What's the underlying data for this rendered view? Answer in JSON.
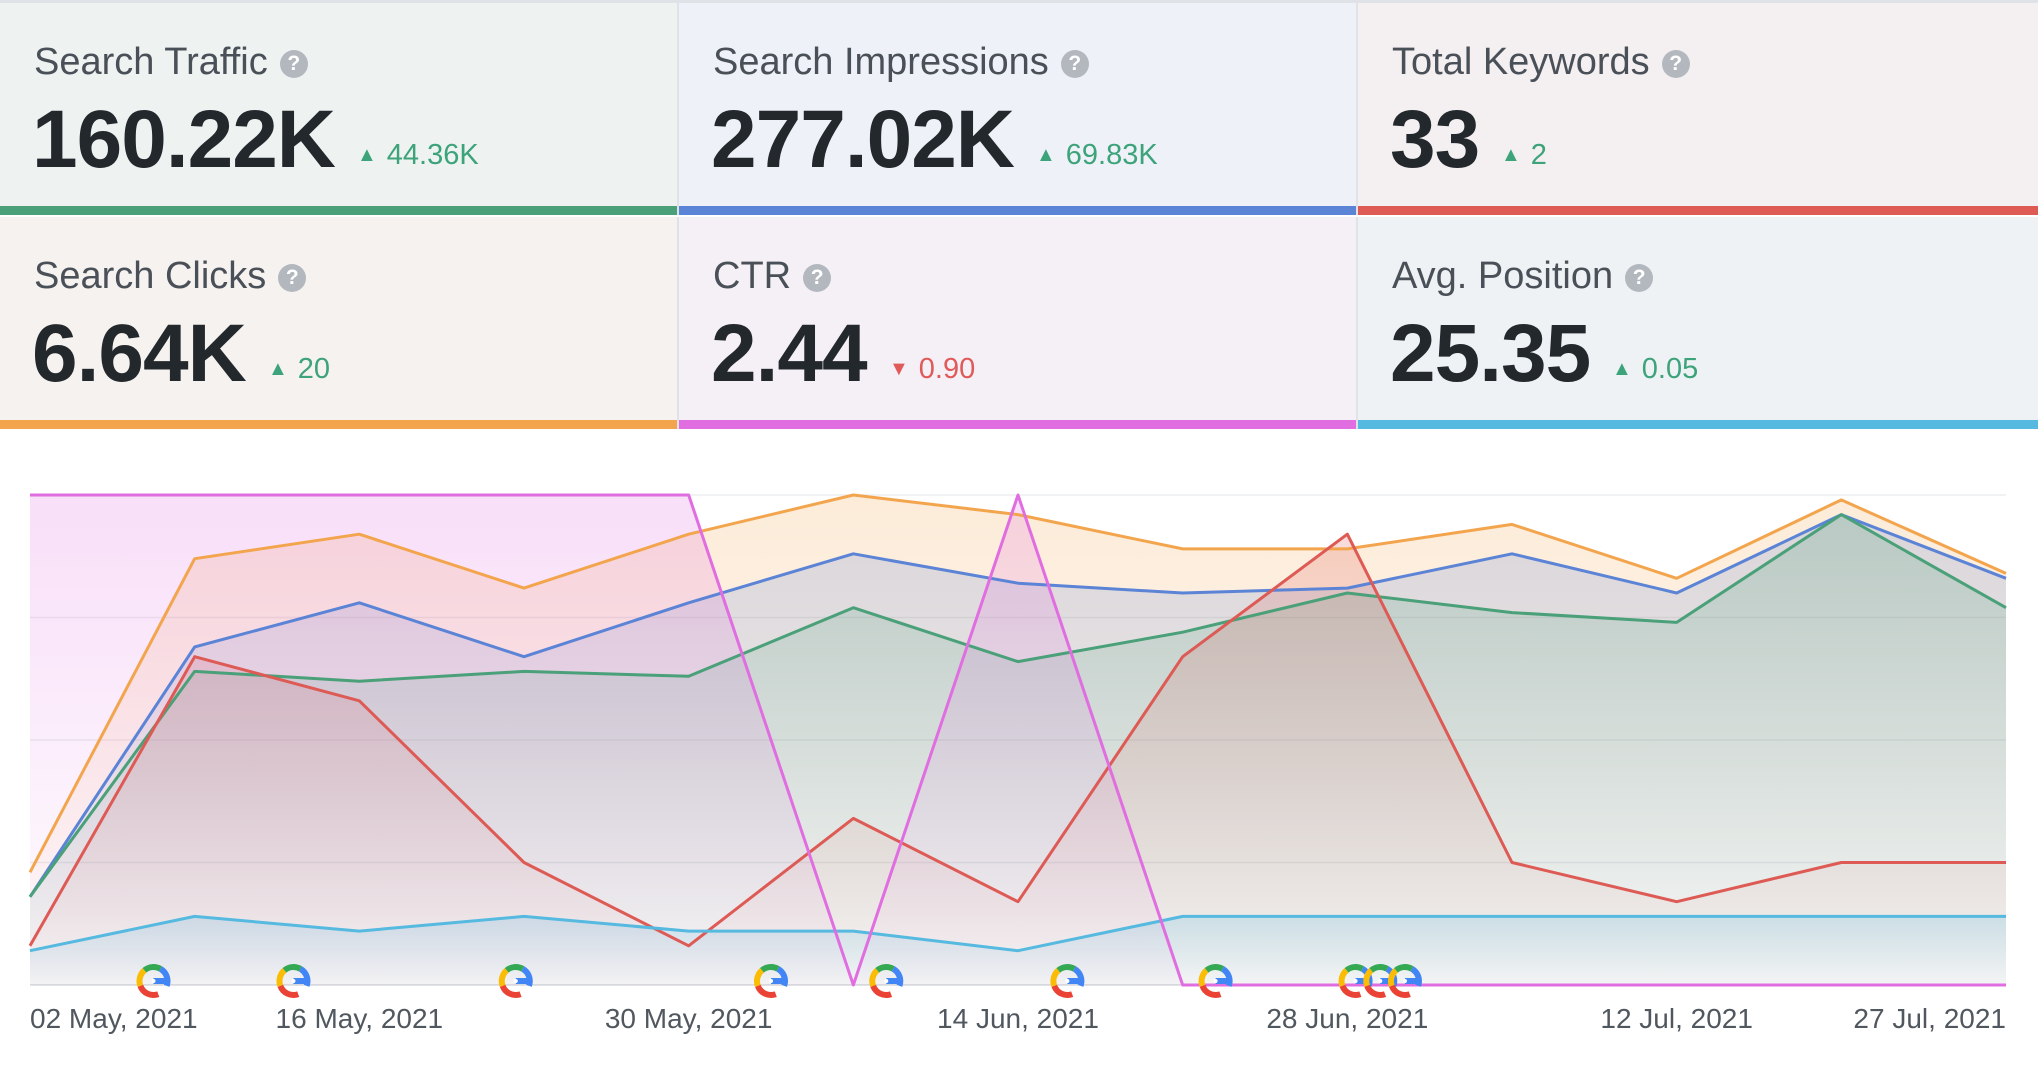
{
  "cards": [
    {
      "title": "Search Traffic",
      "help_icon": "?",
      "value": "160.22K",
      "change": "44.36K",
      "direction": "up",
      "color": "#4aa079",
      "bg": "#eef3f2"
    },
    {
      "title": "Search Impressions",
      "help_icon": "?",
      "value": "277.02K",
      "change": "69.83K",
      "direction": "up",
      "color": "#5b83d6",
      "bg": "#eef1f7"
    },
    {
      "title": "Total Keywords",
      "help_icon": "?",
      "value": "33",
      "change": "2",
      "direction": "up",
      "color": "#dd5a55",
      "bg": "#f4eff0"
    },
    {
      "title": "Search Clicks",
      "help_icon": "?",
      "value": "6.64K",
      "change": "20",
      "direction": "up",
      "color": "#f3a54e",
      "bg": "#f6f2ef"
    },
    {
      "title": "CTR",
      "help_icon": "?",
      "value": "2.44",
      "change": "0.90",
      "direction": "down",
      "color": "#e06ee0",
      "bg": "#f5f0f6"
    },
    {
      "title": "Avg. Position",
      "help_icon": "?",
      "value": "25.35",
      "change": "0.05",
      "direction": "up",
      "color": "#55b9e0",
      "bg": "#eef2f5"
    }
  ],
  "icons": {
    "up_arrow": "triangle-up-icon",
    "down_arrow": "triangle-down-icon",
    "google_marker": "google-g-icon"
  },
  "chart_data": {
    "type": "area",
    "x": [
      "02 May, 2021",
      "09 May, 2021",
      "16 May, 2021",
      "23 May, 2021",
      "30 May, 2021",
      "06 Jun, 2021",
      "14 Jun, 2021",
      "21 Jun, 2021",
      "28 Jun, 2021",
      "05 Jul, 2021",
      "12 Jul, 2021",
      "20 Jul, 2021",
      "27 Jul, 2021"
    ],
    "tick_labels": [
      "02 May, 2021",
      "16 May, 2021",
      "30 May, 2021",
      "14 Jun, 2021",
      "28 Jun, 2021",
      "12 Jul, 2021",
      "27 Jul, 2021"
    ],
    "ylim": [
      0,
      100
    ],
    "grid": true,
    "series": [
      {
        "name": "Search Clicks",
        "color": "#f3a54e",
        "fill": true,
        "values": [
          23,
          87,
          92,
          81,
          92,
          100,
          96,
          89,
          89,
          94,
          83,
          99,
          84
        ]
      },
      {
        "name": "Search Impressions",
        "color": "#5b83d6",
        "fill": true,
        "values": [
          18,
          69,
          78,
          67,
          78,
          88,
          82,
          80,
          81,
          88,
          80,
          96,
          83
        ]
      },
      {
        "name": "Search Traffic",
        "color": "#4aa079",
        "fill": true,
        "values": [
          18,
          64,
          62,
          64,
          63,
          77,
          66,
          72,
          80,
          76,
          74,
          96,
          77
        ]
      },
      {
        "name": "Total Keywords",
        "color": "#dd5a55",
        "fill": true,
        "values": [
          8,
          67,
          58,
          25,
          8,
          34,
          17,
          67,
          92,
          25,
          17,
          25,
          25
        ]
      },
      {
        "name": "Avg. Position",
        "color": "#55b9e0",
        "fill": true,
        "values": [
          7,
          14,
          11,
          14,
          11,
          11,
          7,
          14,
          14,
          14,
          14,
          14,
          14
        ]
      },
      {
        "name": "CTR",
        "color": "#e06ee0",
        "fill": true,
        "values": [
          100,
          100,
          100,
          100,
          100,
          0,
          100,
          0,
          0,
          0,
          0,
          0,
          0
        ]
      }
    ],
    "google_markers": [
      0.75,
      1.6,
      2.95,
      4.5,
      5.2,
      6.3,
      7.2,
      8.05,
      8.2,
      8.35
    ]
  }
}
